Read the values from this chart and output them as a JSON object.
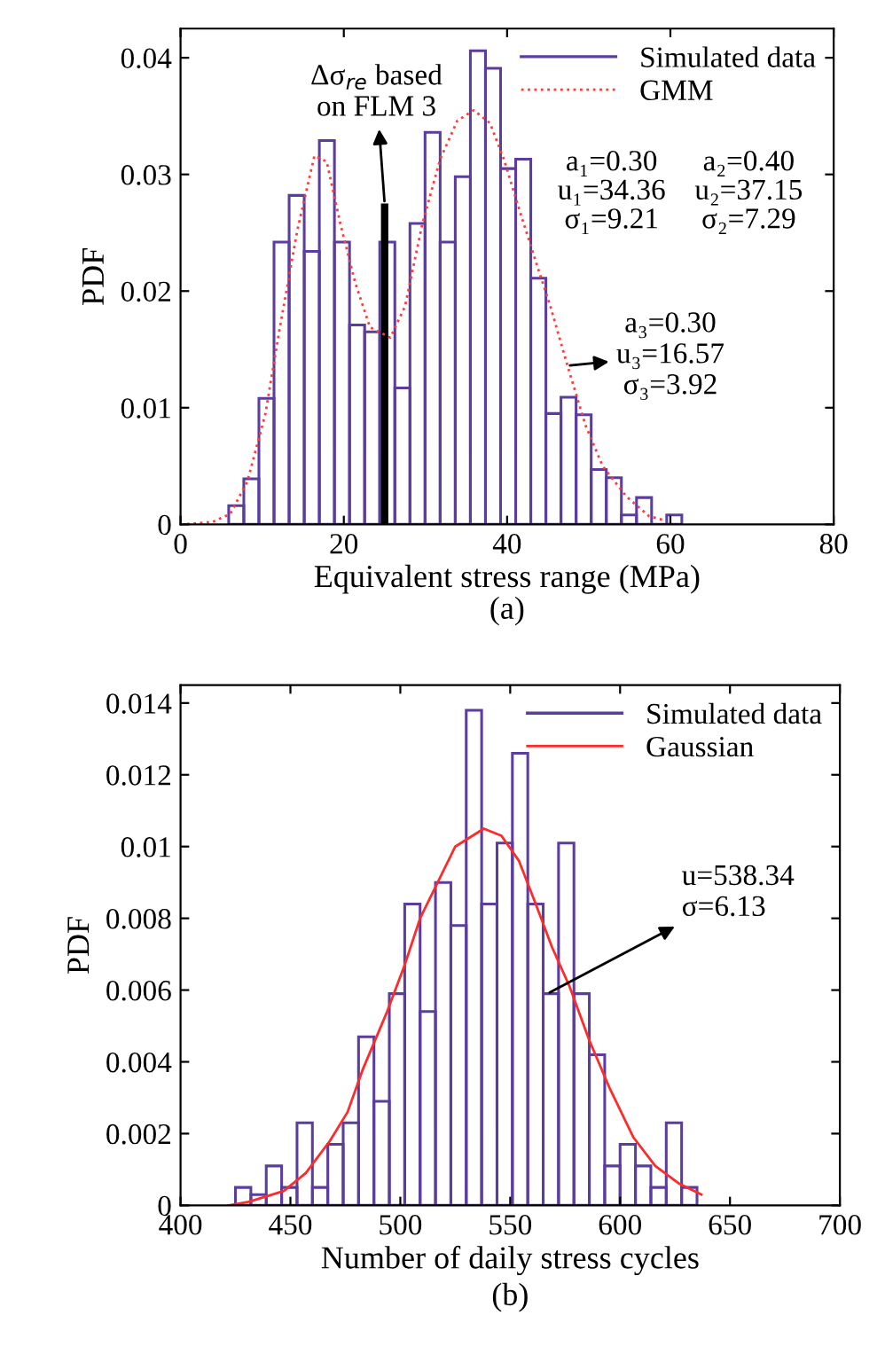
{
  "chart_data": [
    {
      "type": "histogram",
      "title": "(a)",
      "xlabel": "Equivalent stress range (MPa)",
      "ylabel": "PDF",
      "bins": [
        5.9,
        7.75,
        9.6,
        11.45,
        13.3,
        15.15,
        17.0,
        18.85,
        20.7,
        22.55,
        24.4,
        26.25,
        28.1,
        29.95,
        31.8,
        33.65,
        35.5,
        37.35,
        39.2,
        41.05,
        42.9,
        44.75,
        46.6,
        48.45,
        50.3,
        52.15,
        54.0,
        55.85,
        57.7,
        59.55,
        61.4
      ],
      "series": [
        {
          "name": "Simulated data",
          "color": "#5a3d9e",
          "values": [
            0.0016,
            0.0039,
            0.0108,
            0.0242,
            0.0282,
            0.0234,
            0.0329,
            0.0242,
            0.0171,
            0.0165,
            0.0242,
            0.0117,
            0.0258,
            0.0336,
            0.0242,
            0.0298,
            0.0406,
            0.0391,
            0.0305,
            0.0313,
            0.0211,
            0.0095,
            0.0109,
            0.0094,
            0.0047,
            0.004,
            0.0008,
            0.0023,
            0.0,
            0.0008
          ]
        },
        {
          "name": "GMM",
          "type": "line",
          "line_style": "dotted",
          "color": "#ff3b3b",
          "x": [
            0,
            3.9,
            6.1,
            8.2,
            10.4,
            12.1,
            14.3,
            16.4,
            17.9,
            19.6,
            21.4,
            23.2,
            25.7,
            27.5,
            29.6,
            31.8,
            33.9,
            35.9,
            37.9,
            39.6,
            41.8,
            43.9,
            45.3,
            47.4,
            49.6,
            51.7,
            54.6,
            57.4,
            59.5
          ],
          "values": [
            0,
            0.0002,
            0.0009,
            0.0037,
            0.0095,
            0.0166,
            0.0252,
            0.0316,
            0.0311,
            0.0257,
            0.0207,
            0.0169,
            0.016,
            0.0187,
            0.0257,
            0.0313,
            0.0346,
            0.0355,
            0.0344,
            0.0313,
            0.0263,
            0.0217,
            0.0187,
            0.0136,
            0.0085,
            0.005,
            0.0024,
            0.0007,
            0.0003
          ]
        },
        {
          "type": "bar",
          "color": "#000000",
          "x": [
            25
          ],
          "values": [
            0.0275
          ]
        }
      ],
      "annotations": [
        {
          "text": "Δσ$_{re}$ based\non FLM 3",
          "x": 25,
          "y": 0.0275
        },
        "a₁=0.30\nu₁=34.36\nσ₁=9.21",
        "a₂=0.40\nu₂=37.15\nσ₂=7.29",
        {
          "text": "a₃=0.30\nu₃=16.57\nσ₃=3.92",
          "x": 47.4,
          "y": 0.0136
        }
      ],
      "xlim": [
        0,
        80
      ],
      "xticks": [
        0,
        20,
        40,
        60,
        80
      ],
      "ylim": [
        0,
        0.0425
      ],
      "yticks": [
        0,
        0.01,
        0.02,
        0.03,
        0.04
      ],
      "grid": false,
      "legend": "top right"
    },
    {
      "type": "histogram",
      "title": "(b)",
      "xlabel": "Number of daily stress cycles",
      "ylabel": "PDF",
      "bins": [
        425,
        432,
        439,
        446,
        453,
        460,
        467,
        474,
        481,
        488,
        495,
        502,
        509,
        516,
        523,
        530,
        537,
        544,
        551,
        558,
        565,
        572,
        579,
        586,
        593,
        600,
        607,
        614,
        621,
        628,
        635
      ],
      "series": [
        {
          "name": "Simulated data",
          "color": "#5a3d9e",
          "values": [
            0.0005,
            0.0003,
            0.0011,
            0.0005,
            0.0023,
            0.0005,
            0.0017,
            0.0023,
            0.0047,
            0.0029,
            0.0059,
            0.0084,
            0.0054,
            0.009,
            0.0078,
            0.0138,
            0.0084,
            0.0101,
            0.0126,
            0.0084,
            0.0059,
            0.0101,
            0.0059,
            0.0042,
            0.0011,
            0.0017,
            0.0011,
            0.0005,
            0.0023,
            0.0005
          ]
        },
        {
          "name": "Gaussian",
          "type": "line",
          "line_style": "solid",
          "color": "#ff2a2a",
          "x": [
            422,
            431,
            447,
            457,
            468,
            476,
            483,
            494,
            502,
            509,
            517,
            525,
            538,
            546,
            554,
            561,
            569,
            577,
            586,
            595,
            606,
            616,
            627,
            637
          ],
          "values": [
            0,
            0.0001,
            0.0004,
            0.0009,
            0.0018,
            0.0026,
            0.0038,
            0.0054,
            0.0067,
            0.008,
            0.009,
            0.01,
            0.0105,
            0.0103,
            0.0096,
            0.0085,
            0.0072,
            0.0061,
            0.0046,
            0.0033,
            0.0019,
            0.0011,
            0.0006,
            0.0003
          ]
        }
      ],
      "annotations": [
        {
          "text": "u=538.34\nσ=6.13",
          "x": 567,
          "y": 0.0059
        }
      ],
      "xlim": [
        400,
        700
      ],
      "xticks": [
        400,
        450,
        500,
        550,
        600,
        650,
        700
      ],
      "ylim": [
        0,
        0.0145
      ],
      "yticks": [
        0,
        0.002,
        0.004,
        0.006,
        0.008,
        0.01,
        0.012,
        0.014
      ],
      "grid": false,
      "legend": "top right"
    }
  ]
}
